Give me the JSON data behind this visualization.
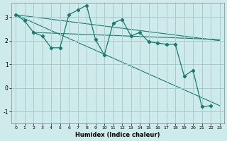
{
  "xlabel": "Humidex (Indice chaleur)",
  "xlim": [
    -0.5,
    23.5
  ],
  "ylim": [
    -1.5,
    3.6
  ],
  "yticks": [
    -1,
    0,
    1,
    2,
    3
  ],
  "xticks": [
    0,
    1,
    2,
    3,
    4,
    5,
    6,
    7,
    8,
    9,
    10,
    11,
    12,
    13,
    14,
    15,
    16,
    17,
    18,
    19,
    20,
    21,
    22,
    23
  ],
  "bg_color": "#ceeaea",
  "grid_color": "#a8cccc",
  "line_color": "#1a7a6e",
  "main_line": {
    "x": [
      0,
      1,
      2,
      3,
      4,
      5,
      6,
      7,
      8,
      9,
      10,
      11,
      12,
      13,
      14,
      15,
      16,
      17,
      18,
      19,
      20,
      21,
      22,
      23
    ],
    "y": [
      3.1,
      2.85,
      2.35,
      2.2,
      1.7,
      1.7,
      3.1,
      3.3,
      3.5,
      2.05,
      1.4,
      2.75,
      2.9,
      2.2,
      2.35,
      1.95,
      1.9,
      1.85,
      1.85,
      0.5,
      0.75,
      -0.8,
      -0.75,
      null
    ]
  },
  "trend1": {
    "x": [
      0,
      23
    ],
    "y": [
      3.1,
      2.0
    ]
  },
  "trend2": {
    "x": [
      2,
      23
    ],
    "y": [
      2.35,
      2.05
    ]
  },
  "trend3": {
    "x": [
      0,
      23
    ],
    "y": [
      3.1,
      -0.75
    ]
  }
}
